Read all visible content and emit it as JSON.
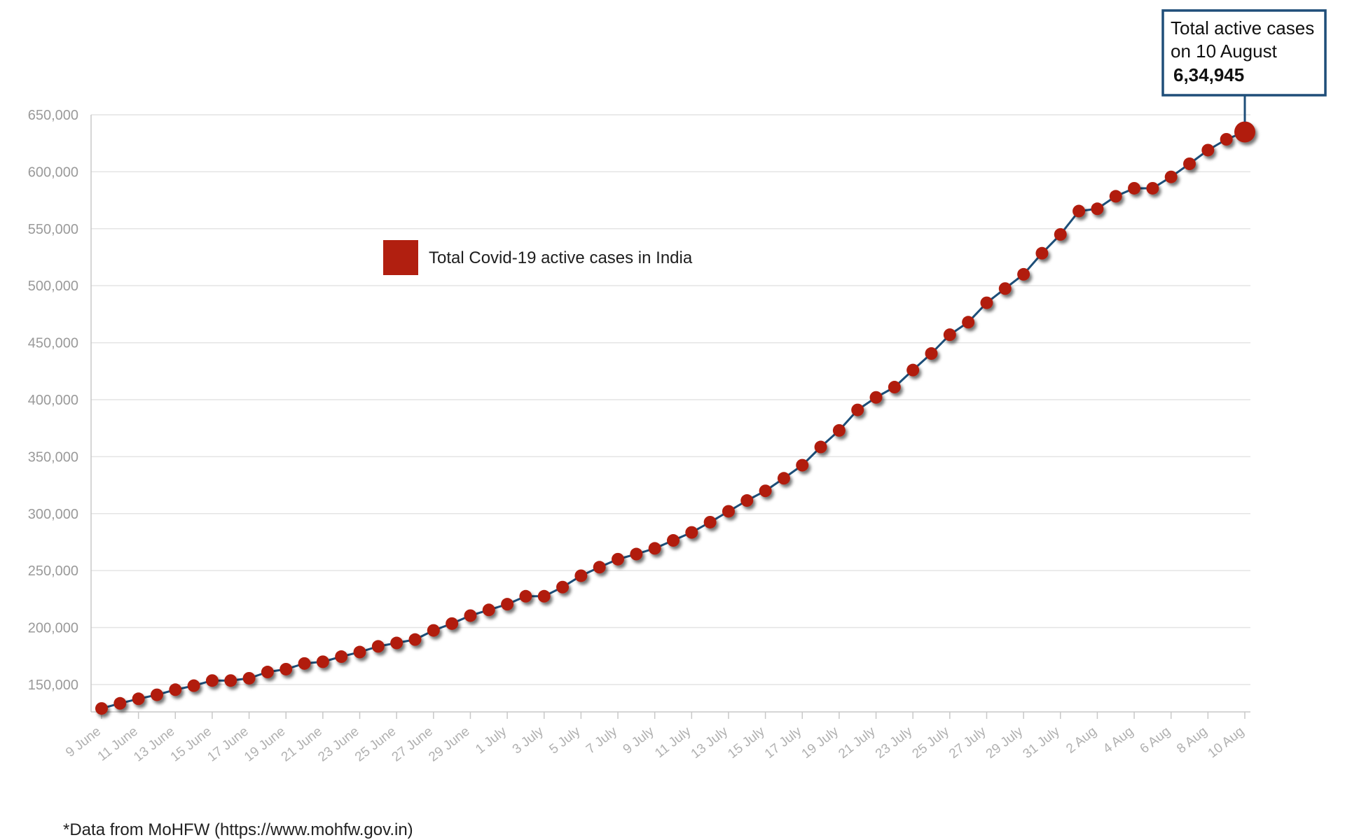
{
  "chart_data": {
    "type": "line",
    "title": "",
    "xlabel": "",
    "ylabel": "",
    "ylim": [
      126000,
      650000
    ],
    "grid": true,
    "legend_placement": "top-left",
    "x": [
      "9 June",
      "10 June",
      "11 June",
      "12 June",
      "13 June",
      "14 June",
      "15 June",
      "16 June",
      "17 June",
      "18 June",
      "19 June",
      "20 June",
      "21 June",
      "22 June",
      "23 June",
      "24 June",
      "25 June",
      "26 June",
      "27 June",
      "28 June",
      "29 June",
      "30 June",
      "1 July",
      "2 July",
      "3 July",
      "4 July",
      "5 July",
      "6 July",
      "7 July",
      "8 July",
      "9 July",
      "10 July",
      "11 July",
      "12 July",
      "13 July",
      "14 July",
      "15 July",
      "16 July",
      "17 July",
      "18 July",
      "19 July",
      "20 July",
      "21 July",
      "22 July",
      "23 July",
      "24 July",
      "25 July",
      "26 July",
      "27 July",
      "28 July",
      "29 July",
      "30 July",
      "31 July",
      "1 Aug",
      "2 Aug",
      "3 Aug",
      "4 Aug",
      "5 Aug",
      "6 Aug",
      "7 Aug",
      "8 Aug",
      "9 Aug",
      "10 Aug"
    ],
    "x_tick_labels": [
      "9 June",
      "11 June",
      "13 June",
      "15 June",
      "17 June",
      "19 June",
      "21 June",
      "23 June",
      "25 June",
      "27 June",
      "29 June",
      "1 July",
      "3 July",
      "5 July",
      "7 July",
      "9 July",
      "11 July",
      "13 July",
      "15 July",
      "17 July",
      "19 July",
      "21 July",
      "23 July",
      "25 July",
      "27 July",
      "29 July",
      "31 July",
      "2 Aug",
      "4 Aug",
      "6 Aug",
      "8 Aug",
      "10 Aug"
    ],
    "y_ticks": [
      150000,
      200000,
      250000,
      300000,
      350000,
      400000,
      450000,
      500000,
      550000,
      600000,
      650000
    ],
    "y_tick_labels": [
      "150,000",
      "200,000",
      "250,000",
      "300,000",
      "350,000",
      "400,000",
      "450,000",
      "500,000",
      "550,000",
      "600,000",
      "650,000"
    ],
    "series": [
      {
        "name": "Total Covid-19 active cases in India",
        "values": [
          129000,
          133500,
          137500,
          141000,
          145500,
          149000,
          153500,
          153500,
          155500,
          161000,
          163500,
          168500,
          170000,
          174500,
          178500,
          183500,
          186500,
          189500,
          197500,
          203500,
          210500,
          215500,
          220500,
          227500,
          227500,
          235500,
          245500,
          253000,
          260000,
          264500,
          269500,
          276500,
          283500,
          292500,
          302000,
          311500,
          320000,
          331000,
          342500,
          358500,
          373000,
          391000,
          402000,
          411000,
          426000,
          440500,
          457000,
          468000,
          485000,
          497500,
          510000,
          528500,
          545000,
          565500,
          567500,
          578500,
          585500,
          585500,
          595500,
          607000,
          619000,
          628500,
          634945
        ]
      }
    ],
    "annotation": {
      "line1": "Total active cases",
      "line2": "on 10 August",
      "value": "6,34,945"
    },
    "footnote": "*Data from MoHFW (https://www.mohfw.gov.in)",
    "colors": {
      "marker": "#b11f10",
      "line": "#1d4e78",
      "annotation_border": "#1f4e79",
      "grid": "#e4e4e4",
      "axis": "#c8c8c8"
    }
  }
}
